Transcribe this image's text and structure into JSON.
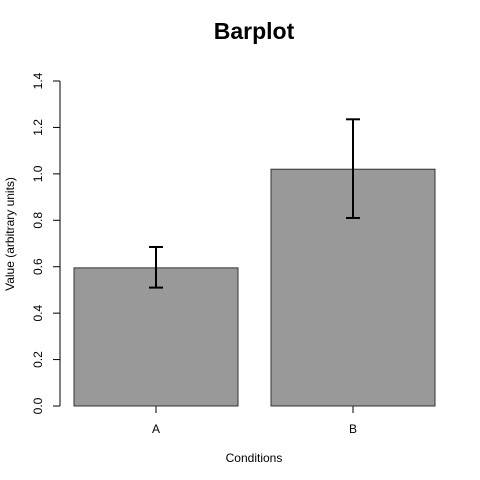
{
  "chart_data": {
    "type": "bar",
    "title": "Barplot",
    "xlabel": "Conditions",
    "ylabel": "Value (arbitrary units)",
    "categories": [
      "A",
      "B"
    ],
    "values": [
      0.595,
      1.02
    ],
    "error_low": [
      0.51,
      0.81
    ],
    "error_high": [
      0.685,
      1.235
    ],
    "ylim": [
      0,
      1.4
    ],
    "y_ticks": [
      "0.0",
      "0.2",
      "0.4",
      "0.6",
      "0.8",
      "1.0",
      "1.2",
      "1.4"
    ],
    "grid": false,
    "bar_color": "#999999",
    "bar_border_color": "#333333"
  }
}
